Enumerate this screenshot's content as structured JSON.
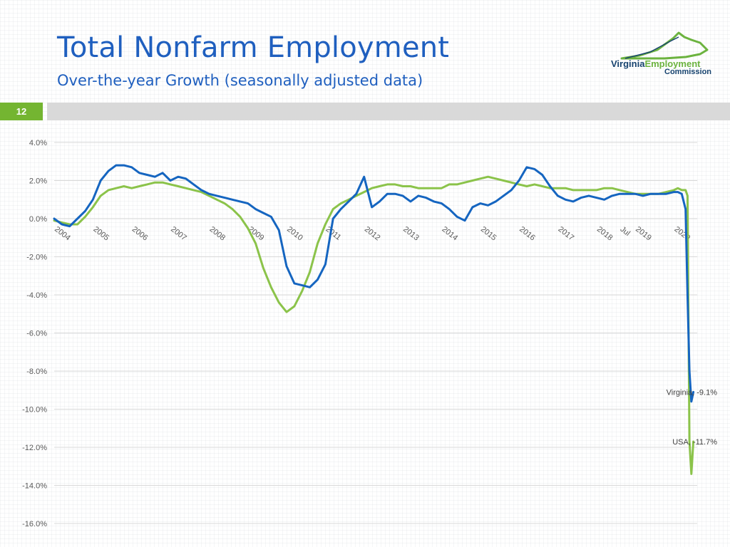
{
  "slide": {
    "title": "Total Nonfarm Employment",
    "subtitle": "Over-the-year Growth  (seasonally adjusted data)",
    "page_number": "12",
    "logo": {
      "line1_a": "Virginia",
      "line1_b": "Employment",
      "line2": "Commission"
    }
  },
  "colors": {
    "title": "#1f5fbf",
    "virginia": "#1565c0",
    "usa": "#8bc34a",
    "page_badge": "#74b531"
  },
  "chart_data": {
    "type": "line",
    "ylim": [
      -16,
      4
    ],
    "y_ticks": [
      "4.0%",
      "2.0%",
      "0.0%",
      "-2.0%",
      "-4.0%",
      "-6.0%",
      "-8.0%",
      "-10.0%",
      "-12.0%",
      "-14.0%",
      "-16.0%"
    ],
    "x_range": [
      2004.0,
      2020.6
    ],
    "x_tick_labels": [
      {
        "t": 2004.0,
        "label": "2004"
      },
      {
        "t": 2005.0,
        "label": "2005"
      },
      {
        "t": 2006.0,
        "label": "2006"
      },
      {
        "t": 2007.0,
        "label": "2007"
      },
      {
        "t": 2008.0,
        "label": "2008"
      },
      {
        "t": 2009.0,
        "label": "2009"
      },
      {
        "t": 2010.0,
        "label": "2010"
      },
      {
        "t": 2011.0,
        "label": "2011"
      },
      {
        "t": 2012.0,
        "label": "2012"
      },
      {
        "t": 2013.0,
        "label": "2013"
      },
      {
        "t": 2014.0,
        "label": "2014"
      },
      {
        "t": 2015.0,
        "label": "2015"
      },
      {
        "t": 2016.0,
        "label": "2016"
      },
      {
        "t": 2017.0,
        "label": "2017"
      },
      {
        "t": 2018.0,
        "label": "2018"
      },
      {
        "t": 2018.6,
        "label": "Jul"
      },
      {
        "t": 2019.0,
        "label": "2019"
      },
      {
        "t": 2020.0,
        "label": "2020"
      }
    ],
    "series": [
      {
        "name": "Virginia",
        "x": [
          2004.0,
          2004.2,
          2004.4,
          2004.6,
          2004.8,
          2005.0,
          2005.2,
          2005.4,
          2005.6,
          2005.8,
          2006.0,
          2006.2,
          2006.4,
          2006.6,
          2006.8,
          2007.0,
          2007.2,
          2007.4,
          2007.6,
          2007.8,
          2008.0,
          2008.2,
          2008.4,
          2008.6,
          2008.8,
          2009.0,
          2009.2,
          2009.4,
          2009.6,
          2009.8,
          2010.0,
          2010.2,
          2010.4,
          2010.6,
          2010.8,
          2011.0,
          2011.2,
          2011.4,
          2011.6,
          2011.8,
          2012.0,
          2012.2,
          2012.4,
          2012.6,
          2012.8,
          2013.0,
          2013.2,
          2013.4,
          2013.6,
          2013.8,
          2014.0,
          2014.2,
          2014.4,
          2014.6,
          2014.8,
          2015.0,
          2015.2,
          2015.4,
          2015.6,
          2015.8,
          2016.0,
          2016.2,
          2016.4,
          2016.6,
          2016.8,
          2017.0,
          2017.2,
          2017.4,
          2017.6,
          2017.8,
          2018.0,
          2018.2,
          2018.4,
          2018.6,
          2018.8,
          2019.0,
          2019.2,
          2019.4,
          2019.6,
          2019.8,
          2020.0,
          2020.1,
          2020.2,
          2020.3,
          2020.35,
          2020.4,
          2020.45,
          2020.5
        ],
        "y": [
          0.0,
          -0.3,
          -0.4,
          0.0,
          0.4,
          1.0,
          2.0,
          2.5,
          2.8,
          2.8,
          2.7,
          2.4,
          2.3,
          2.2,
          2.4,
          2.0,
          2.2,
          2.1,
          1.8,
          1.5,
          1.3,
          1.2,
          1.1,
          1.0,
          0.9,
          0.8,
          0.5,
          0.3,
          0.1,
          -0.6,
          -2.5,
          -3.4,
          -3.5,
          -3.6,
          -3.2,
          -2.4,
          0.0,
          0.5,
          0.9,
          1.3,
          2.2,
          0.6,
          0.9,
          1.3,
          1.3,
          1.2,
          0.9,
          1.2,
          1.1,
          0.9,
          0.8,
          0.5,
          0.1,
          -0.1,
          0.6,
          0.8,
          0.7,
          0.9,
          1.2,
          1.5,
          2.0,
          2.7,
          2.6,
          2.3,
          1.7,
          1.2,
          1.0,
          0.9,
          1.1,
          1.2,
          1.1,
          1.0,
          1.2,
          1.3,
          1.3,
          1.3,
          1.2,
          1.3,
          1.3,
          1.3,
          1.4,
          1.4,
          1.3,
          0.5,
          -4.0,
          -8.0,
          -9.6,
          -9.1
        ]
      },
      {
        "name": "USA",
        "x": [
          2004.0,
          2004.2,
          2004.4,
          2004.6,
          2004.8,
          2005.0,
          2005.2,
          2005.4,
          2005.6,
          2005.8,
          2006.0,
          2006.2,
          2006.4,
          2006.6,
          2006.8,
          2007.0,
          2007.2,
          2007.4,
          2007.6,
          2007.8,
          2008.0,
          2008.2,
          2008.4,
          2008.6,
          2008.8,
          2009.0,
          2009.2,
          2009.4,
          2009.6,
          2009.8,
          2010.0,
          2010.2,
          2010.4,
          2010.6,
          2010.8,
          2011.0,
          2011.2,
          2011.4,
          2011.6,
          2011.8,
          2012.0,
          2012.2,
          2012.4,
          2012.6,
          2012.8,
          2013.0,
          2013.2,
          2013.4,
          2013.6,
          2013.8,
          2014.0,
          2014.2,
          2014.4,
          2014.6,
          2014.8,
          2015.0,
          2015.2,
          2015.4,
          2015.6,
          2015.8,
          2016.0,
          2016.2,
          2016.4,
          2016.6,
          2016.8,
          2017.0,
          2017.2,
          2017.4,
          2017.6,
          2017.8,
          2018.0,
          2018.2,
          2018.4,
          2018.6,
          2018.8,
          2019.0,
          2019.2,
          2019.4,
          2019.6,
          2019.8,
          2020.0,
          2020.1,
          2020.2,
          2020.3,
          2020.35,
          2020.4,
          2020.45,
          2020.5
        ],
        "y": [
          -0.1,
          -0.2,
          -0.3,
          -0.3,
          0.1,
          0.6,
          1.2,
          1.5,
          1.6,
          1.7,
          1.6,
          1.7,
          1.8,
          1.9,
          1.9,
          1.8,
          1.7,
          1.6,
          1.5,
          1.4,
          1.2,
          1.0,
          0.8,
          0.5,
          0.1,
          -0.5,
          -1.3,
          -2.6,
          -3.6,
          -4.4,
          -4.9,
          -4.6,
          -3.8,
          -2.8,
          -1.3,
          -0.3,
          0.5,
          0.8,
          1.0,
          1.2,
          1.4,
          1.6,
          1.7,
          1.8,
          1.8,
          1.7,
          1.7,
          1.6,
          1.6,
          1.6,
          1.6,
          1.8,
          1.8,
          1.9,
          2.0,
          2.1,
          2.2,
          2.1,
          2.0,
          1.9,
          1.8,
          1.7,
          1.8,
          1.7,
          1.6,
          1.6,
          1.6,
          1.5,
          1.5,
          1.5,
          1.5,
          1.6,
          1.6,
          1.5,
          1.4,
          1.3,
          1.3,
          1.3,
          1.3,
          1.4,
          1.5,
          1.6,
          1.5,
          1.5,
          1.2,
          -11.7,
          -13.4,
          -11.7
        ]
      }
    ],
    "annotations": [
      {
        "series": "Virginia",
        "text": "Virginia, -9.1%"
      },
      {
        "series": "USA",
        "text": "USA, -11.7%"
      }
    ]
  }
}
